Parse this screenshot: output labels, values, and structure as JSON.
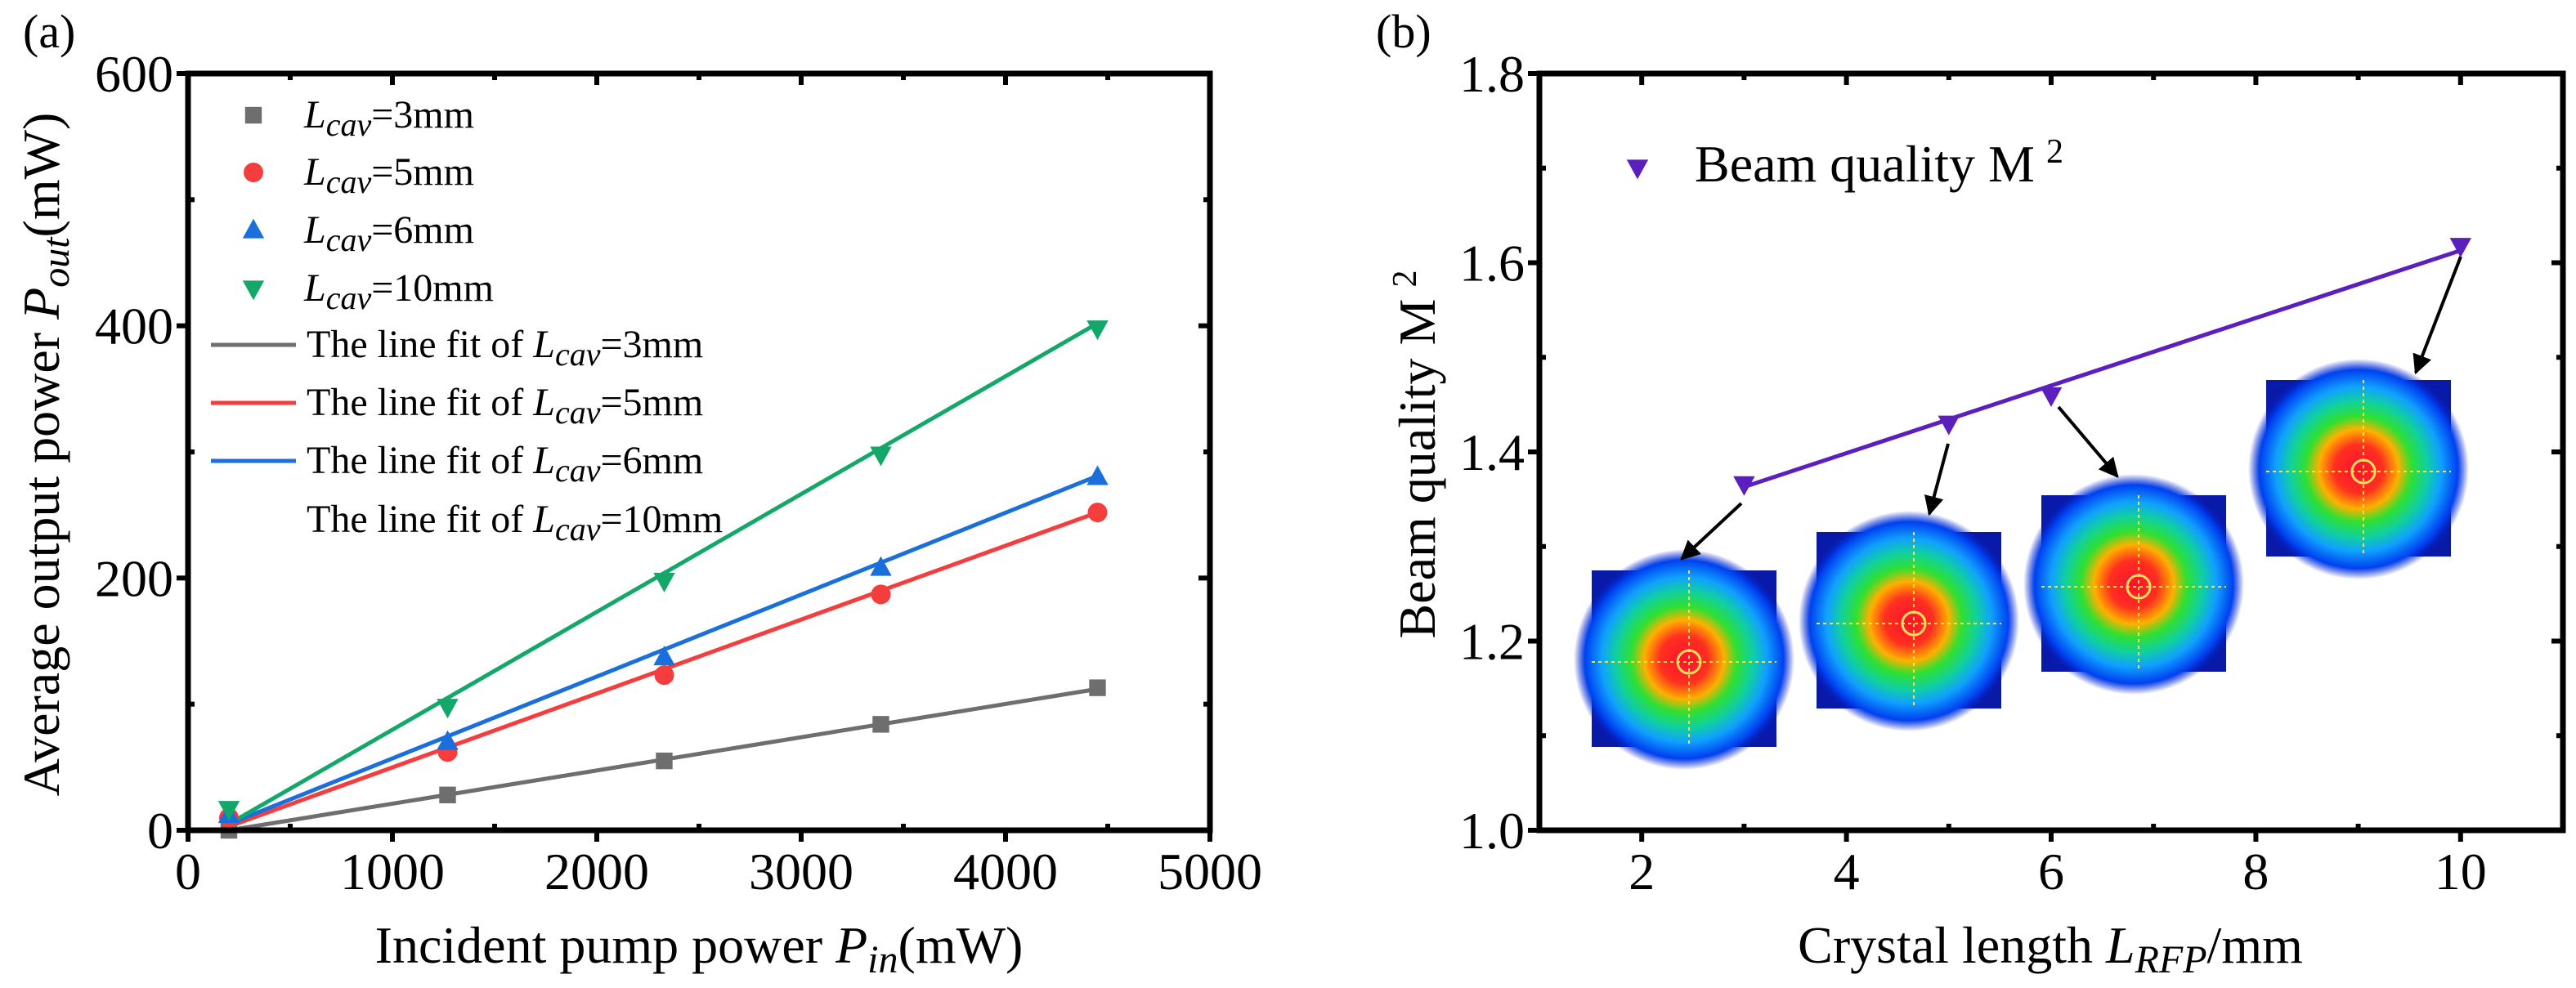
{
  "colors": {
    "gray": "#6e6e6e",
    "red": "#f53d3d",
    "blue": "#1a6fdc",
    "green": "#13a86a",
    "purple": "#5b1fbe"
  },
  "chart_data": [
    {
      "panel_label": "(a)",
      "type": "scatter",
      "title": "",
      "xlabel": {
        "pre": "Incident pump power ",
        "sym": "P",
        "sub": "in",
        "post": "(mW)"
      },
      "ylabel": {
        "pre": "Average output power ",
        "sym": "P",
        "sub": "out",
        "post": "(mW)"
      },
      "xlim": [
        0,
        5000
      ],
      "ylim": [
        0,
        600
      ],
      "xticks": [
        "0",
        "1000",
        "2000",
        "3000",
        "4000",
        "5000"
      ],
      "yticks": [
        "0",
        "200",
        "400",
        "600"
      ],
      "grid": false,
      "legend_position": "top-left",
      "x": [
        200,
        1270,
        2330,
        3390,
        4450
      ],
      "series": [
        {
          "name": "Lcav=3mm",
          "sym": "L",
          "sub": "cav",
          "text": "=3mm",
          "marker": "square",
          "color": "#6e6e6e",
          "values": [
            0,
            28,
            55,
            84,
            113
          ]
        },
        {
          "name": "Lcav=5mm",
          "sym": "L",
          "sub": "cav",
          "text": "=5mm",
          "marker": "circle",
          "color": "#f53d3d",
          "values": [
            10,
            62,
            123,
            187,
            252
          ]
        },
        {
          "name": "Lcav=6mm",
          "sym": "L",
          "sub": "cav",
          "text": "=6mm",
          "marker": "triangle-up",
          "color": "#1a6fdc",
          "values": [
            12,
            70,
            137,
            208,
            280
          ]
        },
        {
          "name": "Lcav=10mm",
          "sym": "L",
          "sub": "cav",
          "text": "=10mm",
          "marker": "triangle-down",
          "color": "#13a86a",
          "values": [
            17,
            98,
            198,
            298,
            398
          ]
        }
      ],
      "fits": [
        {
          "prefix": "The line fit of ",
          "sym": "L",
          "sub": "cav",
          "text": "=3mm",
          "color": "#6e6e6e",
          "x": [
            200,
            4450
          ],
          "y": [
            0,
            112
          ],
          "legend_line": true
        },
        {
          "prefix": "The line fit of ",
          "sym": "L",
          "sub": "cav",
          "text": "=5mm",
          "color": "#f53d3d",
          "x": [
            200,
            4450
          ],
          "y": [
            3,
            252
          ],
          "legend_line": true
        },
        {
          "prefix": "The line fit of ",
          "sym": "L",
          "sub": "cav",
          "text": "=6mm",
          "color": "#1a6fdc",
          "x": [
            200,
            4450
          ],
          "y": [
            5,
            281
          ],
          "legend_line": true
        },
        {
          "prefix": "The line fit of ",
          "sym": "L",
          "sub": "cav",
          "text": "=10mm",
          "color": "#13a86a",
          "x": [
            200,
            4450
          ],
          "y": [
            5,
            402
          ],
          "legend_line": false
        }
      ]
    },
    {
      "panel_label": "(b)",
      "type": "line",
      "title": "",
      "xlabel": {
        "pre": "Crystal length ",
        "sym": "L",
        "sub": "RFP",
        "post": "/mm"
      },
      "ylabel": {
        "pre": "Beam quality M",
        "sup": "2"
      },
      "xlim": [
        1,
        11
      ],
      "ylim": [
        1.0,
        1.8
      ],
      "xticks": [
        "2",
        "4",
        "6",
        "8",
        "10"
      ],
      "xtick_values": [
        2,
        4,
        6,
        8,
        10
      ],
      "yticks": [
        "1.0",
        "1.2",
        "1.4",
        "1.6",
        "1.8"
      ],
      "grid": false,
      "legend_position": "top-left",
      "legend": {
        "pre": "Beam quality M",
        "sup": "2"
      },
      "x": [
        3,
        5,
        6,
        10
      ],
      "series": [
        {
          "name": "Beam quality M2",
          "marker": "triangle-down",
          "color": "#5b1fbe",
          "values": [
            1.366,
            1.43,
            1.46,
            1.618
          ]
        }
      ],
      "fit": {
        "x": [
          3,
          10
        ],
        "y": [
          1.363,
          1.613
        ],
        "color": "#5b1fbe"
      },
      "insets": [
        {
          "name": "beam-profile-3mm",
          "points_to_x": 3
        },
        {
          "name": "beam-profile-5mm",
          "points_to_x": 5
        },
        {
          "name": "beam-profile-6mm",
          "points_to_x": 6
        },
        {
          "name": "beam-profile-10mm",
          "points_to_x": 10
        }
      ]
    }
  ]
}
